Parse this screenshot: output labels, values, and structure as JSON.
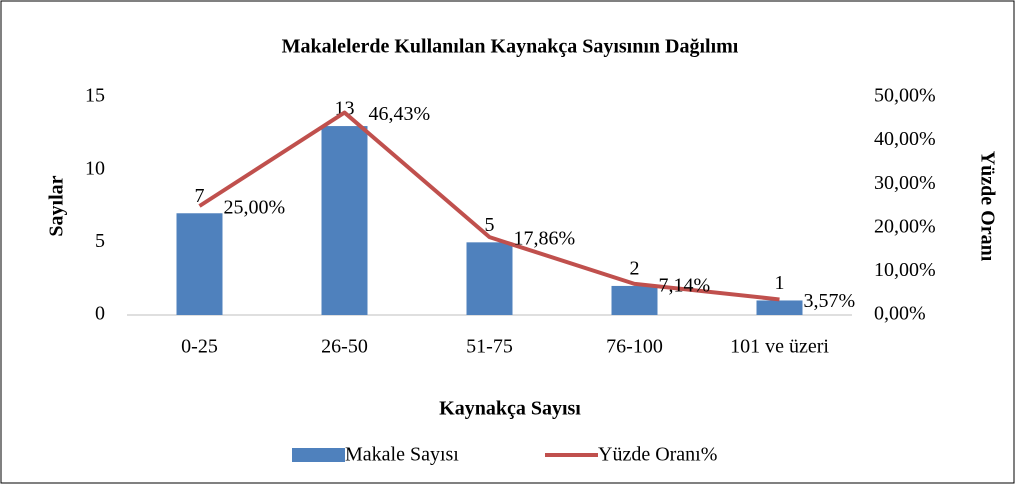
{
  "chart_data": {
    "type": "combo",
    "title": "Makalelerde Kullanılan Kaynakça Sayısının Dağılımı",
    "x_label": "Kaynakça Sayısı",
    "y_label": "Sayılar",
    "y2_label": "Yüzde Oranı",
    "categories": [
      "0-25",
      "26-50",
      "51-75",
      "76-100",
      "101 ve üzeri"
    ],
    "series": [
      {
        "name": "Makale Sayısı",
        "type": "bar",
        "color": "#4f81bd",
        "values": [
          7,
          13,
          5,
          2,
          1
        ]
      },
      {
        "name": "Yüzde Oranı%",
        "type": "line",
        "axis": "y2",
        "color": "#c0504d",
        "values": [
          25.0,
          46.43,
          17.86,
          7.14,
          3.57
        ],
        "value_labels": [
          "25,00%",
          "46,43%",
          "17,86%",
          "7,14%",
          "3,57%"
        ]
      }
    ],
    "ylim": [
      0,
      15
    ],
    "yticks": [
      0,
      5,
      10,
      15
    ],
    "y2lim": [
      0,
      50
    ],
    "y2ticks": [
      {
        "value": 0,
        "label": "0,00%"
      },
      {
        "value": 10,
        "label": "10,00%"
      },
      {
        "value": 20,
        "label": "20,00%"
      },
      {
        "value": 30,
        "label": "30,00%"
      },
      {
        "value": 40,
        "label": "40,00%"
      },
      {
        "value": 50,
        "label": "50,00%"
      }
    ],
    "legend": "bottom"
  }
}
